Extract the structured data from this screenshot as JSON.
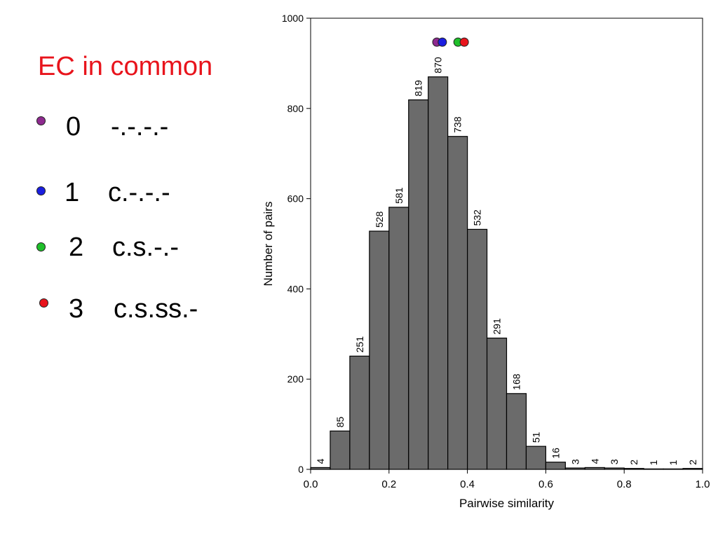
{
  "legend": {
    "title": "EC in common",
    "items": [
      {
        "num": "0",
        "code": "-.-.-.-",
        "color": "#8e2a8f"
      },
      {
        "num": "1",
        "code": "c.-.-.-",
        "color": "#1a1ee0"
      },
      {
        "num": "2",
        "code": "c.s.-.-",
        "color": "#1fbf2a"
      },
      {
        "num": "3",
        "code": "c.s.ss.-",
        "color": "#e8141c"
      }
    ]
  },
  "chart_data": {
    "type": "bar",
    "xlabel": "Pairwise similarity",
    "ylabel": "Number of pairs",
    "xlim": [
      0.0,
      1.0
    ],
    "ylim": [
      0,
      1000
    ],
    "xticks": [
      "0.0",
      "0.2",
      "0.4",
      "0.6",
      "0.8",
      "1.0"
    ],
    "yticks": [
      "0",
      "200",
      "400",
      "600",
      "800",
      "1000"
    ],
    "bin_width": 0.05,
    "bins": [
      0.0,
      0.05,
      0.1,
      0.15,
      0.2,
      0.25,
      0.3,
      0.35,
      0.4,
      0.45,
      0.5,
      0.55,
      0.6,
      0.65,
      0.7,
      0.75,
      0.8,
      0.85,
      0.9,
      0.95
    ],
    "values": [
      4,
      85,
      251,
      528,
      581,
      819,
      870,
      738,
      532,
      291,
      168,
      51,
      16,
      3,
      4,
      3,
      2,
      1,
      1,
      2
    ],
    "bar_color": "#6b6b6b",
    "markers": [
      {
        "x": 0.322,
        "y": 975,
        "color": "#8e2a8f"
      },
      {
        "x": 0.336,
        "y": 975,
        "color": "#1a1ee0"
      },
      {
        "x": 0.376,
        "y": 975,
        "color": "#1fbf2a"
      },
      {
        "x": 0.392,
        "y": 975,
        "color": "#e8141c"
      }
    ]
  }
}
